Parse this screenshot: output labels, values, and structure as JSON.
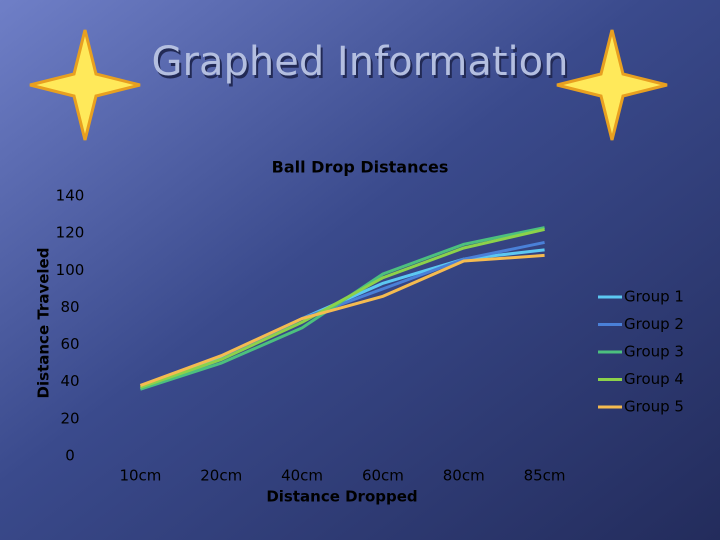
{
  "title": "Graphed Information",
  "chart_data": {
    "type": "line",
    "title": "Ball Drop Distances",
    "x_label": "Distance Dropped",
    "y_label": "Distance Traveled",
    "categories": [
      "10cm",
      "20cm",
      "40cm",
      "60cm",
      "80cm",
      "85cm"
    ],
    "series": [
      {
        "name": "Group 1",
        "color": "#5cc8f2",
        "values": [
          36,
          53,
          74,
          93,
          106,
          111
        ]
      },
      {
        "name": "Group 2",
        "color": "#4a80d8",
        "values": [
          36,
          52,
          74,
          90,
          106,
          115
        ]
      },
      {
        "name": "Group 3",
        "color": "#4cc07e",
        "values": [
          36,
          50,
          69,
          98,
          114,
          123
        ]
      },
      {
        "name": "Group 4",
        "color": "#8cd24a",
        "values": [
          37,
          52,
          72,
          96,
          112,
          122
        ]
      },
      {
        "name": "Group 5",
        "color": "#f5bb50",
        "values": [
          38,
          54,
          74,
          86,
          105,
          108
        ]
      }
    ],
    "ylim": [
      0,
      140
    ],
    "yticks": [
      0,
      20,
      40,
      60,
      80,
      100,
      120,
      140
    ],
    "grid": false,
    "legend": "right"
  }
}
